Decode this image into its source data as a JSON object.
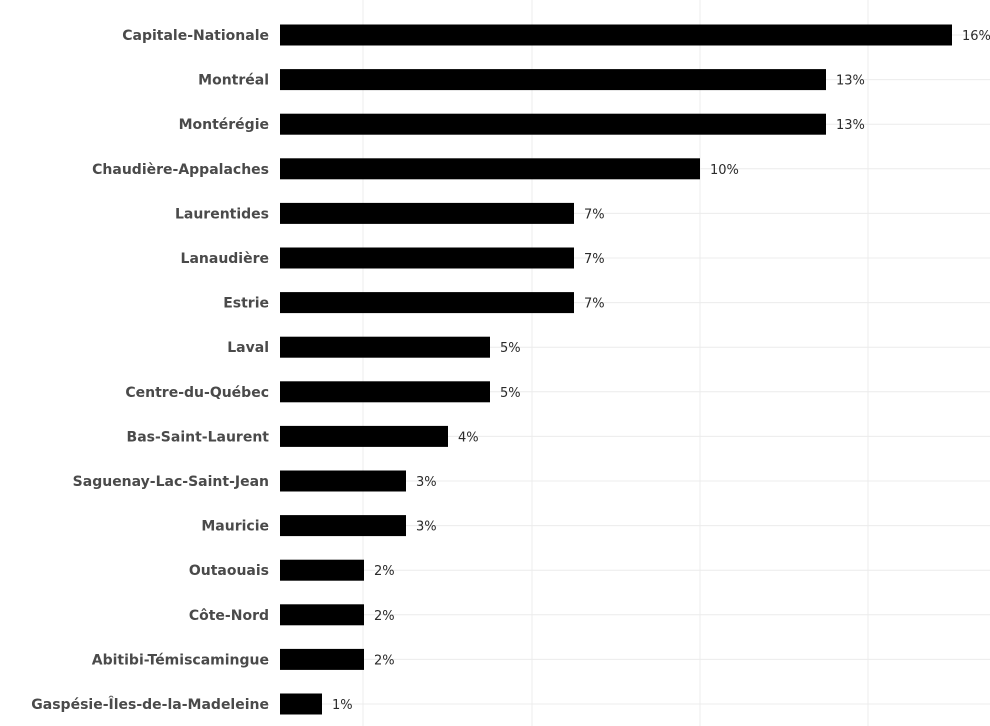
{
  "chart_data": {
    "type": "bar",
    "orientation": "horizontal",
    "categories": [
      "Capitale-Nationale",
      "Montréal",
      "Montérégie",
      "Chaudière-Appalaches",
      "Laurentides",
      "Lanaudière",
      "Estrie",
      "Laval",
      "Centre-du-Québec",
      "Bas-Saint-Laurent",
      "Saguenay-Lac-Saint-Jean",
      "Mauricie",
      "Outaouais",
      "Côte-Nord",
      "Abitibi-Témiscamingue",
      "Gaspésie-Îles-de-la-Madeleine"
    ],
    "values": [
      16,
      13,
      13,
      10,
      7,
      7,
      7,
      5,
      5,
      4,
      3,
      3,
      2,
      2,
      2,
      1
    ],
    "value_labels": [
      "16%",
      "13%",
      "13%",
      "10%",
      "7%",
      "7%",
      "7%",
      "5%",
      "5%",
      "4%",
      "3%",
      "3%",
      "2%",
      "2%",
      "2%",
      "1%"
    ],
    "title": "",
    "xlabel": "",
    "ylabel": "",
    "xlim": [
      0,
      17
    ],
    "grid": true,
    "bar_color": "#000000",
    "gridline_color": "#ececec",
    "category_label_color": "#4a4a4a"
  }
}
